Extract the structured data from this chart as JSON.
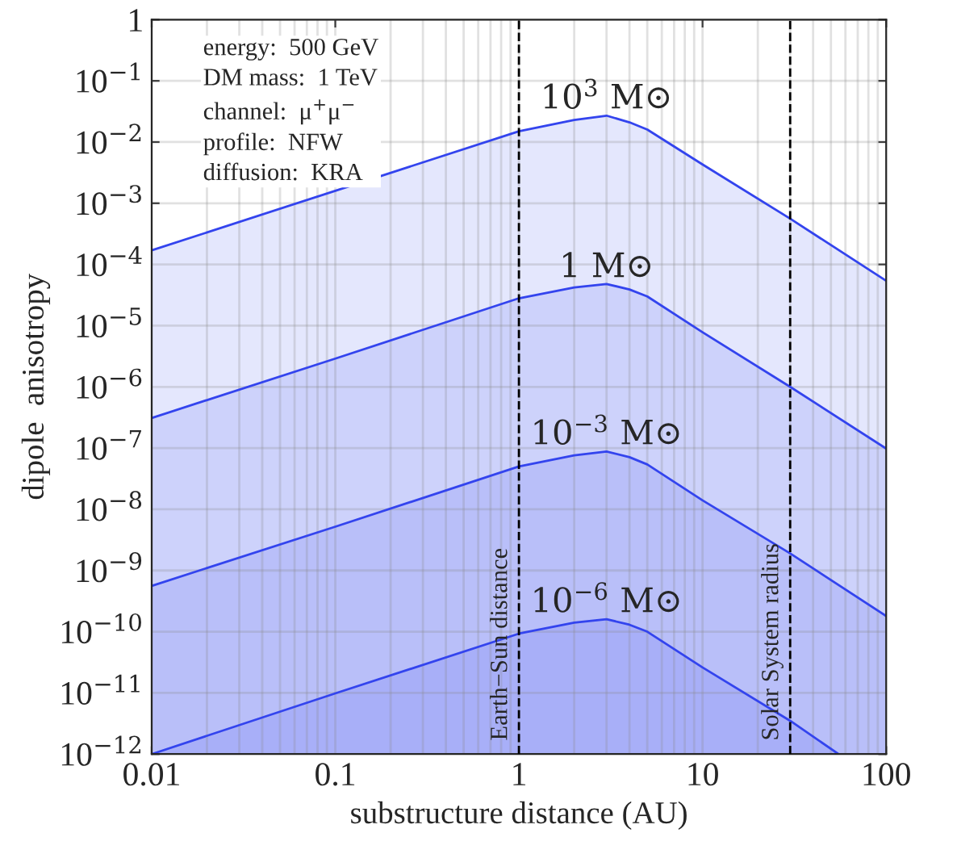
{
  "chart_data": {
    "type": "area",
    "xlabel": "substructure distance (AU)",
    "ylabel": "dipole  anisotropy",
    "log": "xy",
    "grid": true,
    "legend": false,
    "x": [
      0.01,
      0.1,
      1,
      2,
      3,
      4,
      5,
      10,
      30,
      100
    ],
    "series": [
      {
        "name": "10$^{3}$ M⊙",
        "color": "#3344ee",
        "values": [
          0.00017,
          0.0016,
          0.015,
          0.023,
          0.027,
          0.021,
          0.016,
          0.0043,
          0.00056,
          5.4e-05
        ]
      },
      {
        "name": "1 M⊙",
        "color": "#3344ee",
        "values": [
          3.1e-07,
          2.9e-06,
          2.8e-05,
          4.2e-05,
          4.8e-05,
          3.9e-05,
          3e-05,
          7.8e-06,
          1e-06,
          9.8e-08
        ]
      },
      {
        "name": "10$^{−3}$ M⊙",
        "color": "#3344ee",
        "values": [
          5.6e-10,
          5.2e-09,
          5e-08,
          7.6e-08,
          8.8e-08,
          7.1e-08,
          5.4e-08,
          1.4e-08,
          1.9e-09,
          1.8e-10
        ]
      },
      {
        "name": "10$^{−6}$ M⊙",
        "color": "#3344ee",
        "x": [
          0.01,
          0.1,
          1,
          2,
          3,
          4,
          5,
          10,
          30,
          55
        ],
        "values": [
          1e-12,
          9.8e-12,
          9.3e-11,
          1.4e-10,
          1.6e-10,
          1.3e-10,
          1e-10,
          2.6e-11,
          3.5e-12,
          1e-12
        ]
      }
    ],
    "xlim": [
      0.01,
      100
    ],
    "xticks": [
      0.01,
      0.1,
      1,
      10,
      100
    ],
    "ylim": [
      1e-12,
      1
    ],
    "yticks": [
      {
        "value": 1e-12,
        "label": "10$^{−12}$"
      },
      {
        "value": 1e-11,
        "label": "10$^{−11}$"
      },
      {
        "value": 1e-10,
        "label": "10$^{−10}$"
      },
      {
        "value": 1e-09,
        "label": "10$^{−9}$"
      },
      {
        "value": 1e-08,
        "label": "10$^{−8}$"
      },
      {
        "value": 1e-07,
        "label": "10$^{−7}$"
      },
      {
        "value": 1e-06,
        "label": "10$^{−6}$"
      },
      {
        "value": 1e-05,
        "label": "10$^{−5}$"
      },
      {
        "value": 0.0001,
        "label": "10$^{−4}$"
      },
      {
        "value": 0.001,
        "label": "10$^{−3}$"
      },
      {
        "value": 0.01,
        "label": "10$^{−2}$"
      },
      {
        "value": 0.1,
        "label": "10$^{−1}$"
      },
      {
        "value": 1,
        "label": "1"
      }
    ],
    "ref_lines": [
      {
        "axis": "x",
        "value": 1,
        "label": "Earth−Sun distance",
        "color": "#000000",
        "line_style": "dashed"
      },
      {
        "axis": "x",
        "value": 30,
        "label": "Solar System radius",
        "color": "#000000",
        "line_style": "dashed"
      }
    ],
    "annotations": [
      "energy:  500 GeV",
      "DM mass:  1 TeV",
      "channel:  μ$^{+}$μ$^{−}$",
      "profile:  NFW",
      "diffusion:  KRA"
    ]
  }
}
